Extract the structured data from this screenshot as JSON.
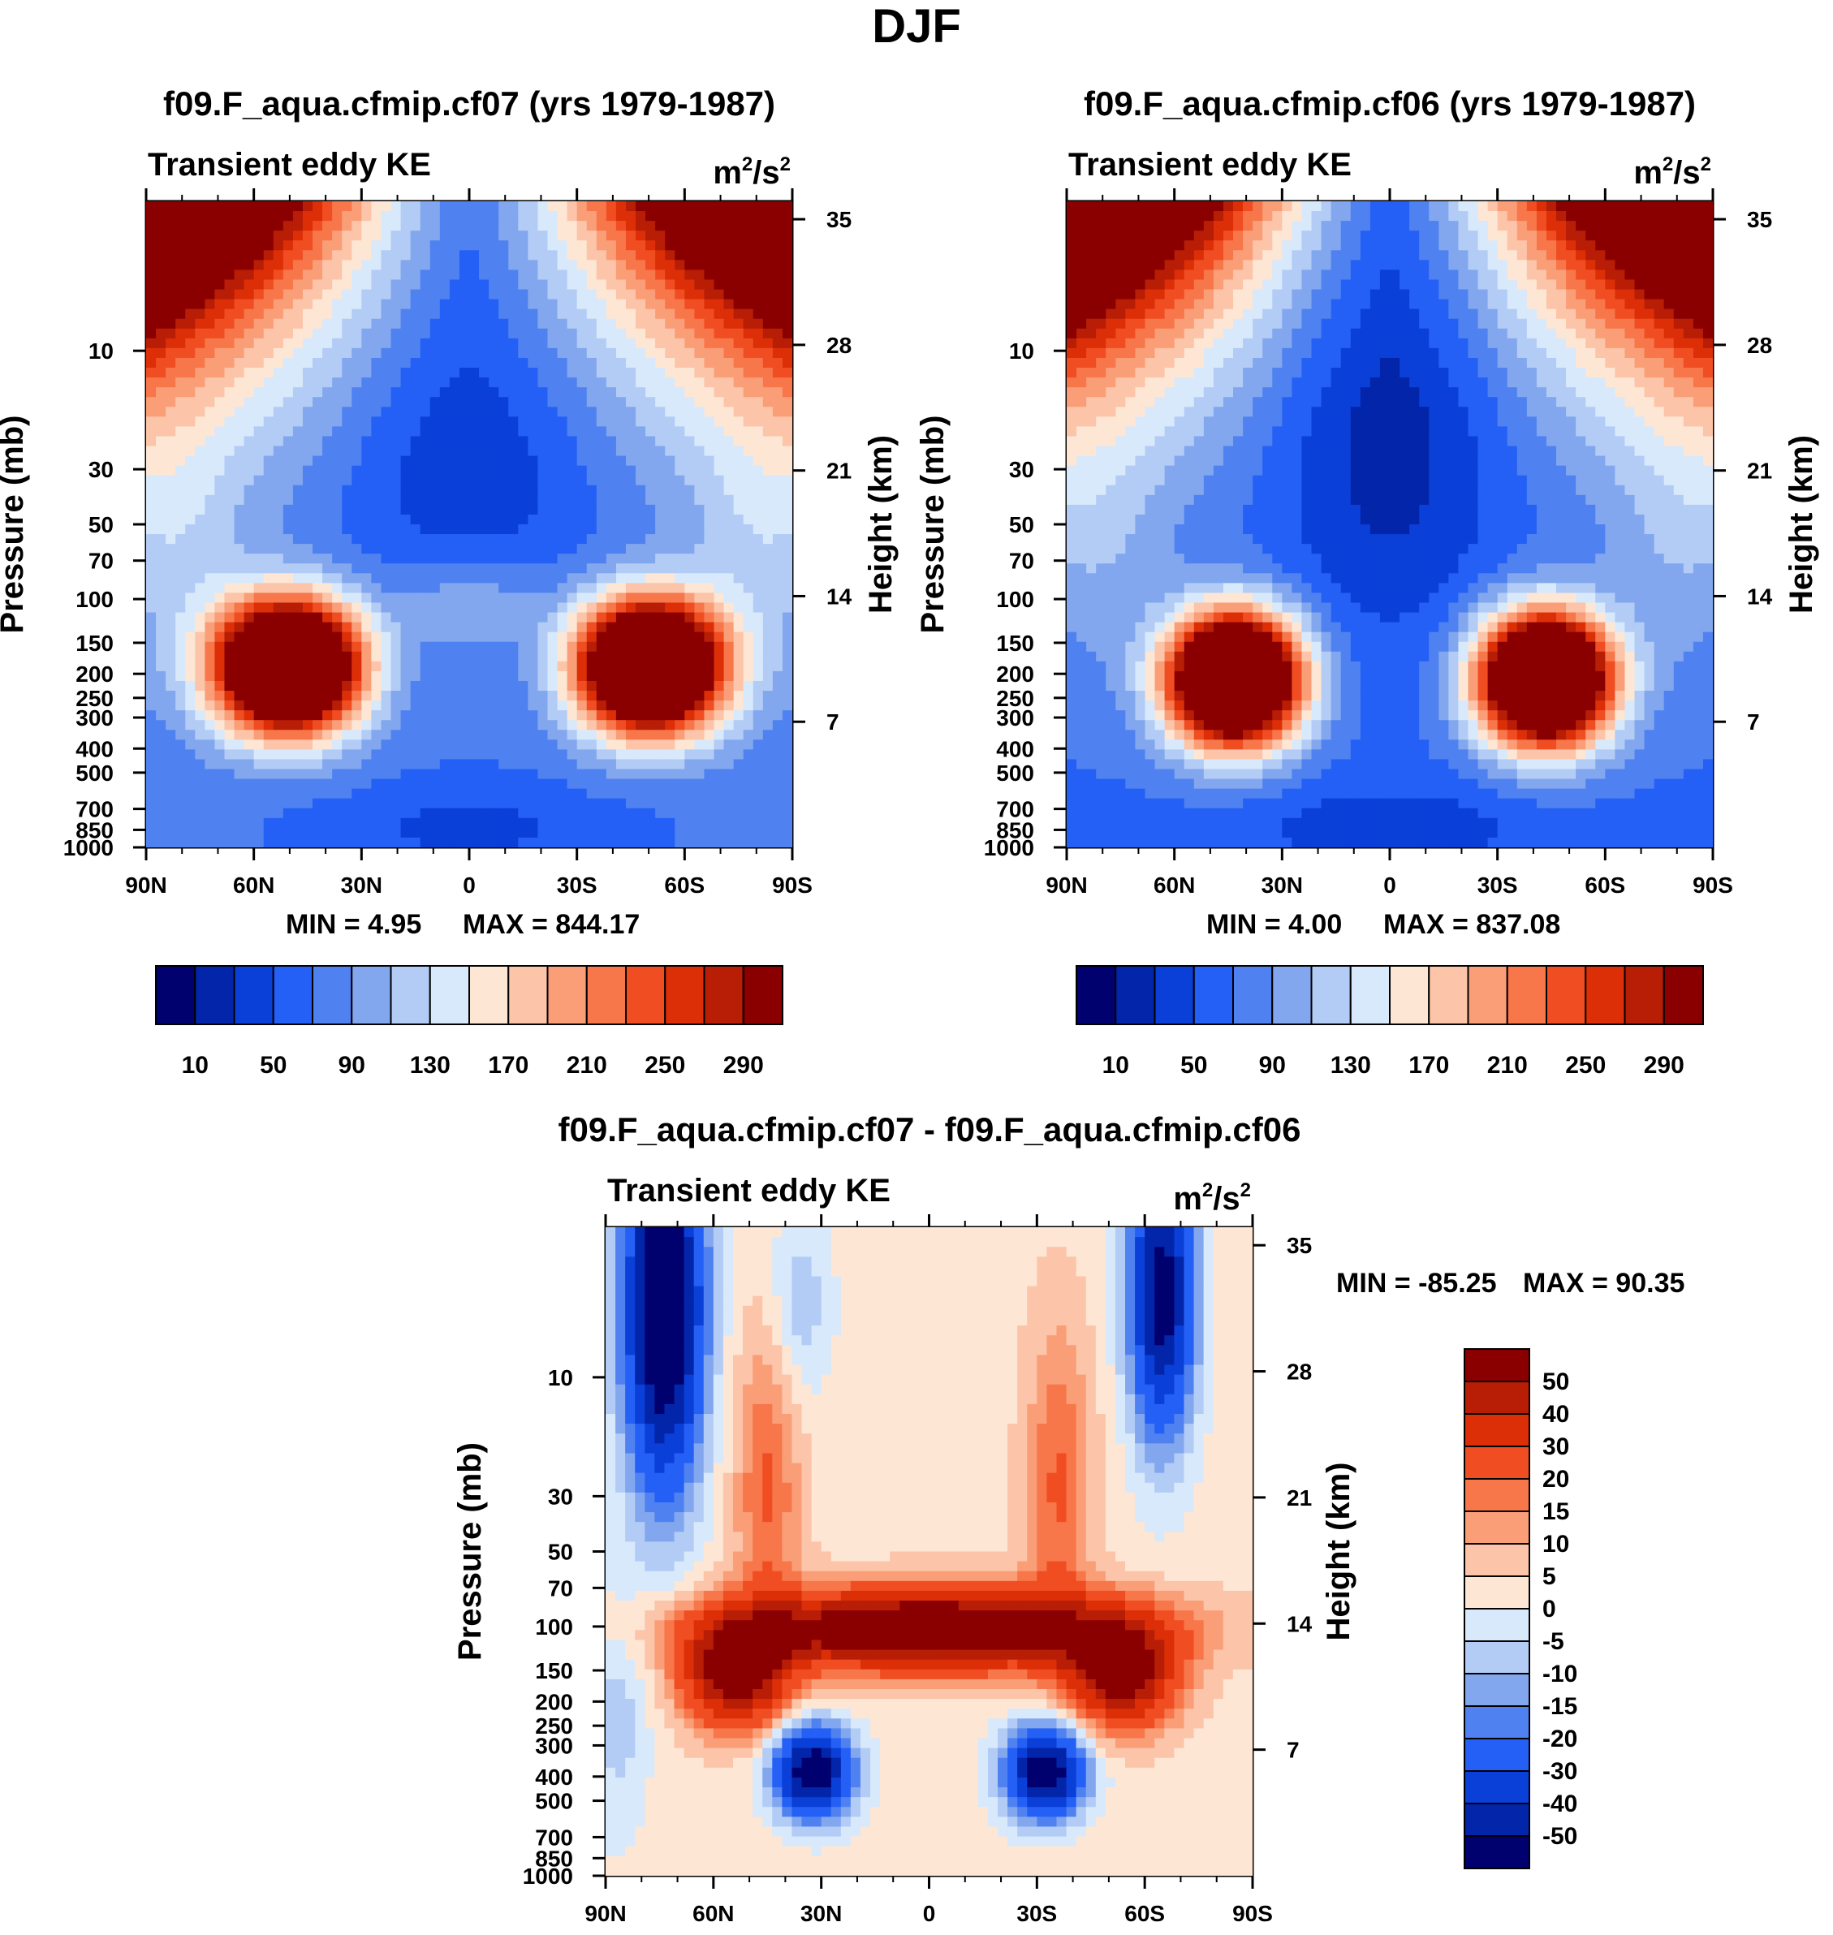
{
  "figure_title": "DJF",
  "chart_data": [
    {
      "type": "heatmap",
      "id": "cf07",
      "title": "f09.F_aqua.cfmip.cf07 (yrs 1979-1987)",
      "variable": "Transient eddy KE",
      "units": "m²/s²",
      "units_base": "m",
      "units_exp1": "2",
      "units_mid": "/s",
      "units_exp2": "2",
      "x_tick_labels": [
        "90N",
        "60N",
        "30N",
        "0",
        "30S",
        "60S",
        "90S"
      ],
      "x_ticks": [
        90,
        60,
        30,
        0,
        -30,
        -60,
        -90
      ],
      "y_tick_labels": [
        "10",
        "30",
        "50",
        "70",
        "100",
        "150",
        "200",
        "250",
        "300",
        "400",
        "500",
        "700",
        "850",
        "1000"
      ],
      "y_ticks": [
        10,
        30,
        50,
        70,
        100,
        150,
        200,
        250,
        300,
        400,
        500,
        700,
        850,
        1000
      ],
      "ylabel": "Pressure (mb)",
      "ylabel_right": "Height (km)",
      "height_tick_labels": [
        "35",
        "28",
        "21",
        "14",
        "7"
      ],
      "height_ticks": [
        35,
        28,
        21,
        14,
        7
      ],
      "min_label": "MIN =   4.95",
      "max_label": "MAX = 844.17",
      "min": 4.95,
      "max": 844.17,
      "contour_levels": [
        10,
        30,
        50,
        70,
        90,
        110,
        130,
        150,
        170,
        190,
        210,
        230,
        250,
        270,
        290
      ],
      "colorbar_labels": [
        "10",
        "50",
        "90",
        "130",
        "170",
        "210",
        "250",
        "290"
      ],
      "colorbar_colors": [
        "#00006e",
        "#0325a9",
        "#0a3fd8",
        "#2460f5",
        "#4f82f0",
        "#82a7ee",
        "#b2ccf6",
        "#d8e9fb",
        "#fde6d4",
        "#fcc4a8",
        "#fa9e78",
        "#f7764a",
        "#f04e22",
        "#dc2f08",
        "#b81d06",
        "#8a0000"
      ]
    },
    {
      "type": "heatmap",
      "id": "cf06",
      "title": "f09.F_aqua.cfmip.cf06 (yrs 1979-1987)",
      "variable": "Transient eddy KE",
      "units": "m²/s²",
      "units_base": "m",
      "units_exp1": "2",
      "units_mid": "/s",
      "units_exp2": "2",
      "x_tick_labels": [
        "90N",
        "60N",
        "30N",
        "0",
        "30S",
        "60S",
        "90S"
      ],
      "x_ticks": [
        90,
        60,
        30,
        0,
        -30,
        -60,
        -90
      ],
      "y_tick_labels": [
        "10",
        "30",
        "50",
        "70",
        "100",
        "150",
        "200",
        "250",
        "300",
        "400",
        "500",
        "700",
        "850",
        "1000"
      ],
      "y_ticks": [
        10,
        30,
        50,
        70,
        100,
        150,
        200,
        250,
        300,
        400,
        500,
        700,
        850,
        1000
      ],
      "ylabel": "Pressure (mb)",
      "ylabel_right": "Height (km)",
      "height_tick_labels": [
        "35",
        "28",
        "21",
        "14",
        "7"
      ],
      "height_ticks": [
        35,
        28,
        21,
        14,
        7
      ],
      "min_label": "MIN =   4.00",
      "max_label": "MAX = 837.08",
      "min": 4.0,
      "max": 837.08,
      "contour_levels": [
        10,
        30,
        50,
        70,
        90,
        110,
        130,
        150,
        170,
        190,
        210,
        230,
        250,
        270,
        290
      ],
      "colorbar_labels": [
        "10",
        "50",
        "90",
        "130",
        "170",
        "210",
        "250",
        "290"
      ],
      "colorbar_colors": [
        "#00006e",
        "#0325a9",
        "#0a3fd8",
        "#2460f5",
        "#4f82f0",
        "#82a7ee",
        "#b2ccf6",
        "#d8e9fb",
        "#fde6d4",
        "#fcc4a8",
        "#fa9e78",
        "#f7764a",
        "#f04e22",
        "#dc2f08",
        "#b81d06",
        "#8a0000"
      ]
    },
    {
      "type": "heatmap",
      "id": "diff",
      "title": "f09.F_aqua.cfmip.cf07 - f09.F_aqua.cfmip.cf06",
      "variable": "Transient eddy KE",
      "units": "m²/s²",
      "units_base": "m",
      "units_exp1": "2",
      "units_mid": "/s",
      "units_exp2": "2",
      "x_tick_labels": [
        "90N",
        "60N",
        "30N",
        "0",
        "30S",
        "60S",
        "90S"
      ],
      "x_ticks": [
        90,
        60,
        30,
        0,
        -30,
        -60,
        -90
      ],
      "y_tick_labels": [
        "10",
        "30",
        "50",
        "70",
        "100",
        "150",
        "200",
        "250",
        "300",
        "400",
        "500",
        "700",
        "850",
        "1000"
      ],
      "y_ticks": [
        10,
        30,
        50,
        70,
        100,
        150,
        200,
        250,
        300,
        400,
        500,
        700,
        850,
        1000
      ],
      "ylabel": "Pressure (mb)",
      "ylabel_right": "Height (km)",
      "height_tick_labels": [
        "35",
        "28",
        "21",
        "14",
        "7"
      ],
      "height_ticks": [
        35,
        28,
        21,
        14,
        7
      ],
      "min_label": "MIN = -85.25",
      "max_label": "MAX =  90.35",
      "min": -85.25,
      "max": 90.35,
      "contour_levels": [
        50,
        40,
        30,
        20,
        15,
        10,
        5,
        0,
        -5,
        -10,
        -15,
        -20,
        -30,
        -40,
        -50
      ],
      "colorbar_labels": [
        "50",
        "40",
        "30",
        "20",
        "15",
        "10",
        "5",
        "0",
        "-5",
        "-10",
        "-15",
        "-20",
        "-30",
        "-40",
        "-50"
      ],
      "colorbar_colors": [
        "#8a0000",
        "#b81d06",
        "#dc2f08",
        "#f04e22",
        "#f7764a",
        "#fa9e78",
        "#fcc4a8",
        "#fde6d4",
        "#d8e9fb",
        "#b2ccf6",
        "#82a7ee",
        "#4f82f0",
        "#2460f5",
        "#0a3fd8",
        "#0325a9",
        "#00006e"
      ]
    }
  ]
}
